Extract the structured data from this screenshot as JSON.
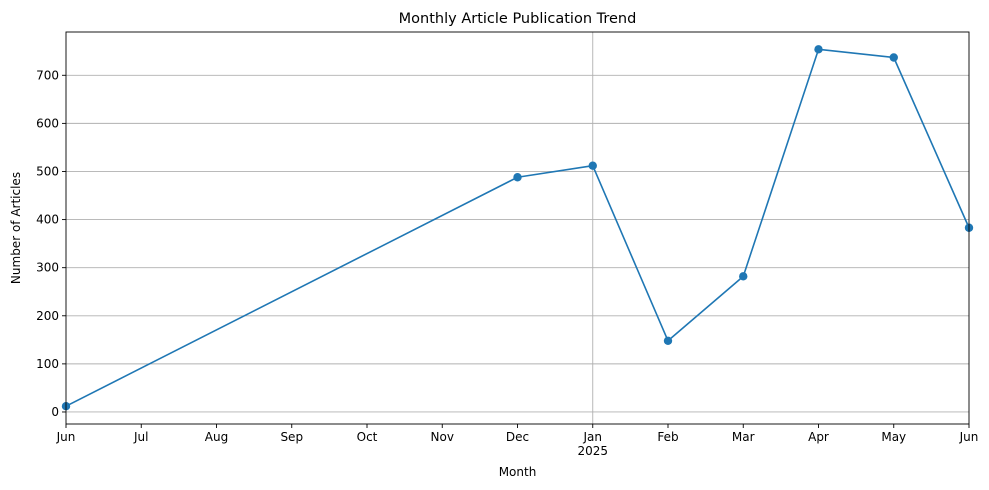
{
  "chart_data": {
    "type": "line",
    "title": "Monthly Article Publication Trend",
    "xlabel": "Month",
    "ylabel": "Number of Articles",
    "x": [
      "2024-06",
      "2024-12",
      "2025-01",
      "2025-02",
      "2025-03",
      "2025-04",
      "2025-05",
      "2025-06"
    ],
    "series": [
      {
        "values": [
          12,
          488,
          512,
          148,
          282,
          754,
          737,
          383
        ]
      }
    ],
    "x_ticks": [
      "2024-06",
      "2024-07",
      "2024-08",
      "2024-09",
      "2024-10",
      "2024-11",
      "2024-12",
      "2025-01",
      "2025-02",
      "2025-03",
      "2025-04",
      "2025-05",
      "2025-06"
    ],
    "x_tick_labels": [
      "Jun",
      "Jul",
      "Aug",
      "Sep",
      "Oct",
      "Nov",
      "Dec",
      "Jan",
      "Feb",
      "Mar",
      "Apr",
      "May",
      "Jun"
    ],
    "x_year_label": "2025",
    "xlim": [
      "2024-06",
      "2025-06"
    ],
    "yticks": [
      0,
      100,
      200,
      300,
      400,
      500,
      600,
      700
    ],
    "ylim": [
      -25,
      790
    ],
    "grid": true,
    "legend": "none",
    "line_color": "#1f77b4"
  }
}
